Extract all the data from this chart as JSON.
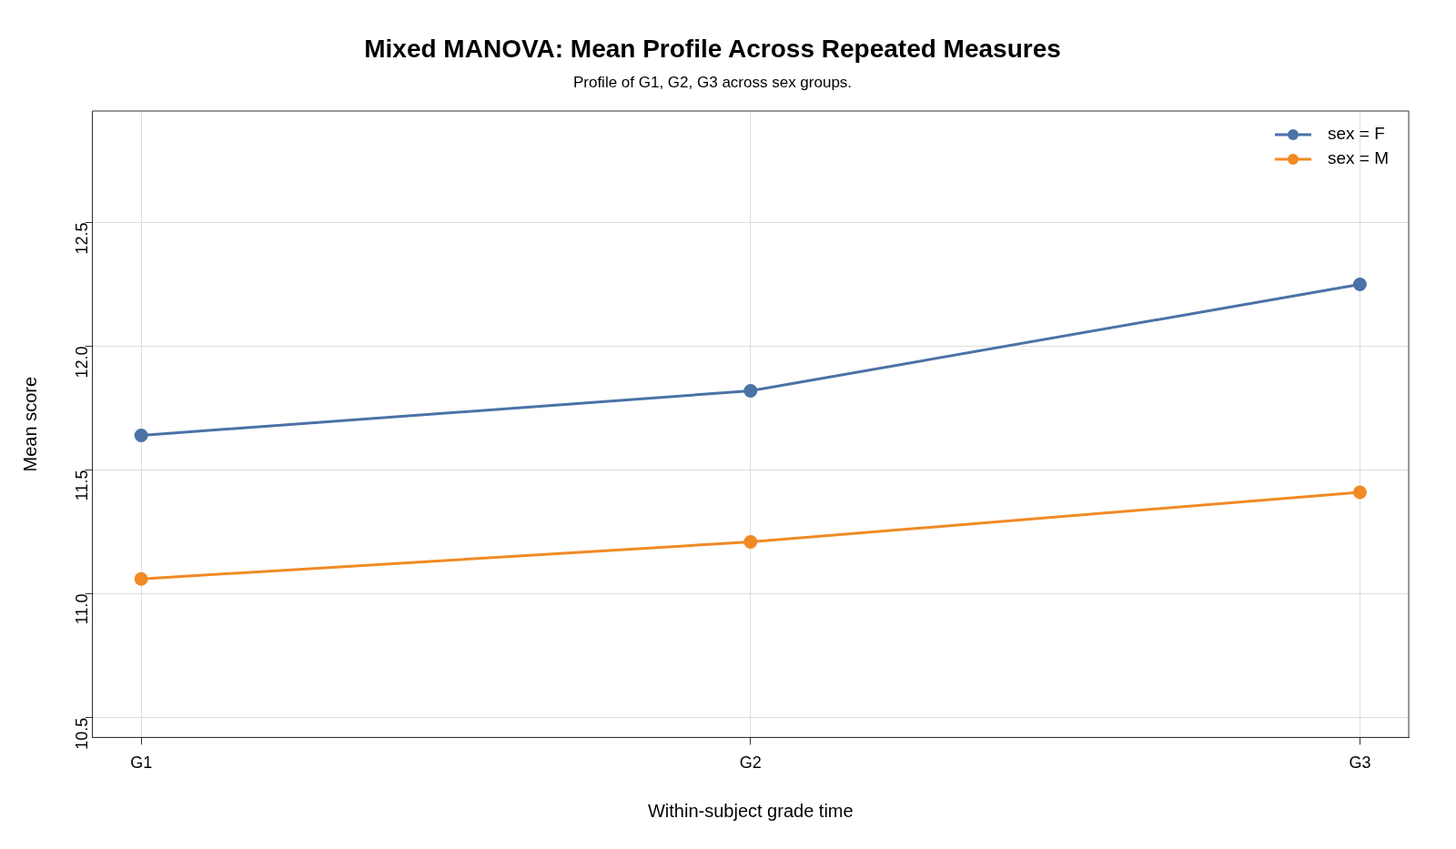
{
  "chart_data": {
    "type": "line",
    "title": "Mixed MANOVA: Mean Profile Across Repeated Measures",
    "subtitle": "Profile of G1, G2, G3 across sex groups.",
    "xlabel": "Within-subject grade time",
    "ylabel": "Mean score",
    "categories": [
      "G1",
      "G2",
      "G3"
    ],
    "series": [
      {
        "name": "sex = F",
        "color": "#4a72a6",
        "values": [
          11.64,
          11.82,
          12.25
        ]
      },
      {
        "name": "sex = M",
        "color": "#f08a24",
        "values": [
          11.06,
          11.21,
          11.41
        ]
      }
    ],
    "ylim": [
      10.42,
      12.95
    ],
    "yticks": [
      {
        "value": 10.5,
        "label": "10.5"
      },
      {
        "value": 11,
        "label": "11.0"
      },
      {
        "value": 11.5,
        "label": "11.5"
      },
      {
        "value": 12,
        "label": "12.0"
      },
      {
        "value": 12.5,
        "label": "12.5"
      }
    ],
    "grid": true,
    "legend": "top right",
    "marker": "circle",
    "line_style": "solid"
  }
}
